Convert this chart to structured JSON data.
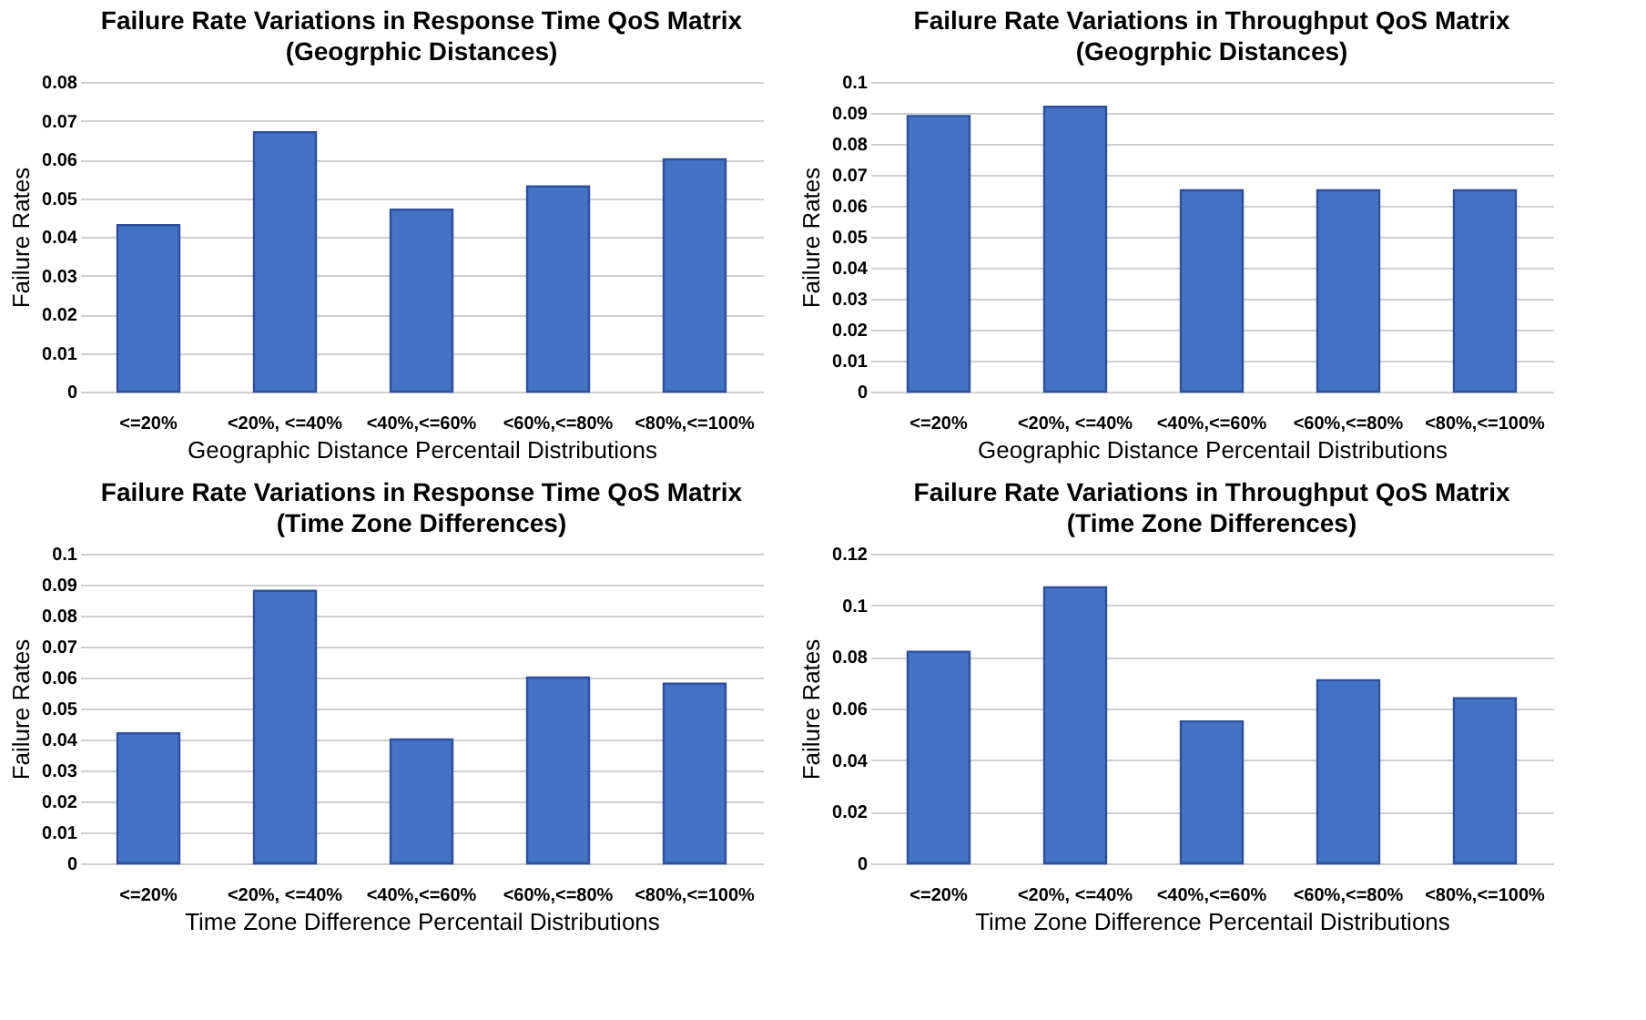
{
  "chart_data": [
    {
      "type": "bar",
      "title": "Failure Rate Variations in Response Time QoS Matrix",
      "subtitle": "(Geogrphic Distances)",
      "xlabel": "Geographic Distance Percentail Distributions",
      "ylabel": "Failure Rates",
      "categories": [
        "<=20%",
        "<20%, <=40%",
        "<40%,<=60%",
        "<60%,<=80%",
        "<80%,<=100%"
      ],
      "values": [
        0.043,
        0.067,
        0.047,
        0.053,
        0.06
      ],
      "color": "#4472c4",
      "ylim": [
        0,
        0.08
      ],
      "yticks": [
        0,
        0.01,
        0.02,
        0.03,
        0.04,
        0.05,
        0.06,
        0.07,
        0.08
      ],
      "grid": "y",
      "legend": false
    },
    {
      "type": "bar",
      "title": "Failure Rate Variations in Throughput QoS Matrix",
      "subtitle": "(Geogrphic Distances)",
      "xlabel": "Geographic Distance Percentail Distributions",
      "ylabel": "Failure Rates",
      "categories": [
        "<=20%",
        "<20%, <=40%",
        "<40%,<=60%",
        "<60%,<=80%",
        "<80%,<=100%"
      ],
      "values": [
        0.089,
        0.092,
        0.065,
        0.065,
        0.065
      ],
      "color": "#4472c4",
      "ylim": [
        0,
        0.1
      ],
      "yticks": [
        0,
        0.01,
        0.02,
        0.03,
        0.04,
        0.05,
        0.06,
        0.07,
        0.08,
        0.09,
        0.1
      ],
      "grid": "y",
      "legend": false
    },
    {
      "type": "bar",
      "title": "Failure Rate Variations in Response Time QoS Matrix",
      "subtitle": "(Time Zone Differences)",
      "xlabel": "Time Zone Difference Percentail Distributions",
      "ylabel": "Failure Rates",
      "categories": [
        "<=20%",
        "<20%, <=40%",
        "<40%,<=60%",
        "<60%,<=80%",
        "<80%,<=100%"
      ],
      "values": [
        0.042,
        0.088,
        0.04,
        0.06,
        0.058
      ],
      "color": "#4472c4",
      "ylim": [
        0,
        0.1
      ],
      "yticks": [
        0,
        0.01,
        0.02,
        0.03,
        0.04,
        0.05,
        0.06,
        0.07,
        0.08,
        0.09,
        0.1
      ],
      "grid": "y",
      "legend": false
    },
    {
      "type": "bar",
      "title": "Failure Rate Variations in Throughput QoS Matrix",
      "subtitle": "(Time Zone Differences)",
      "xlabel": "Time Zone Difference Percentail Distributions",
      "ylabel": "Failure Rates",
      "categories": [
        "<=20%",
        "<20%, <=40%",
        "<40%,<=60%",
        "<60%,<=80%",
        "<80%,<=100%"
      ],
      "values": [
        0.082,
        0.107,
        0.055,
        0.071,
        0.064
      ],
      "color": "#4472c4",
      "ylim": [
        0,
        0.12
      ],
      "yticks": [
        0,
        0.02,
        0.04,
        0.06,
        0.08,
        0.1,
        0.12
      ],
      "grid": "y",
      "legend": false
    }
  ]
}
